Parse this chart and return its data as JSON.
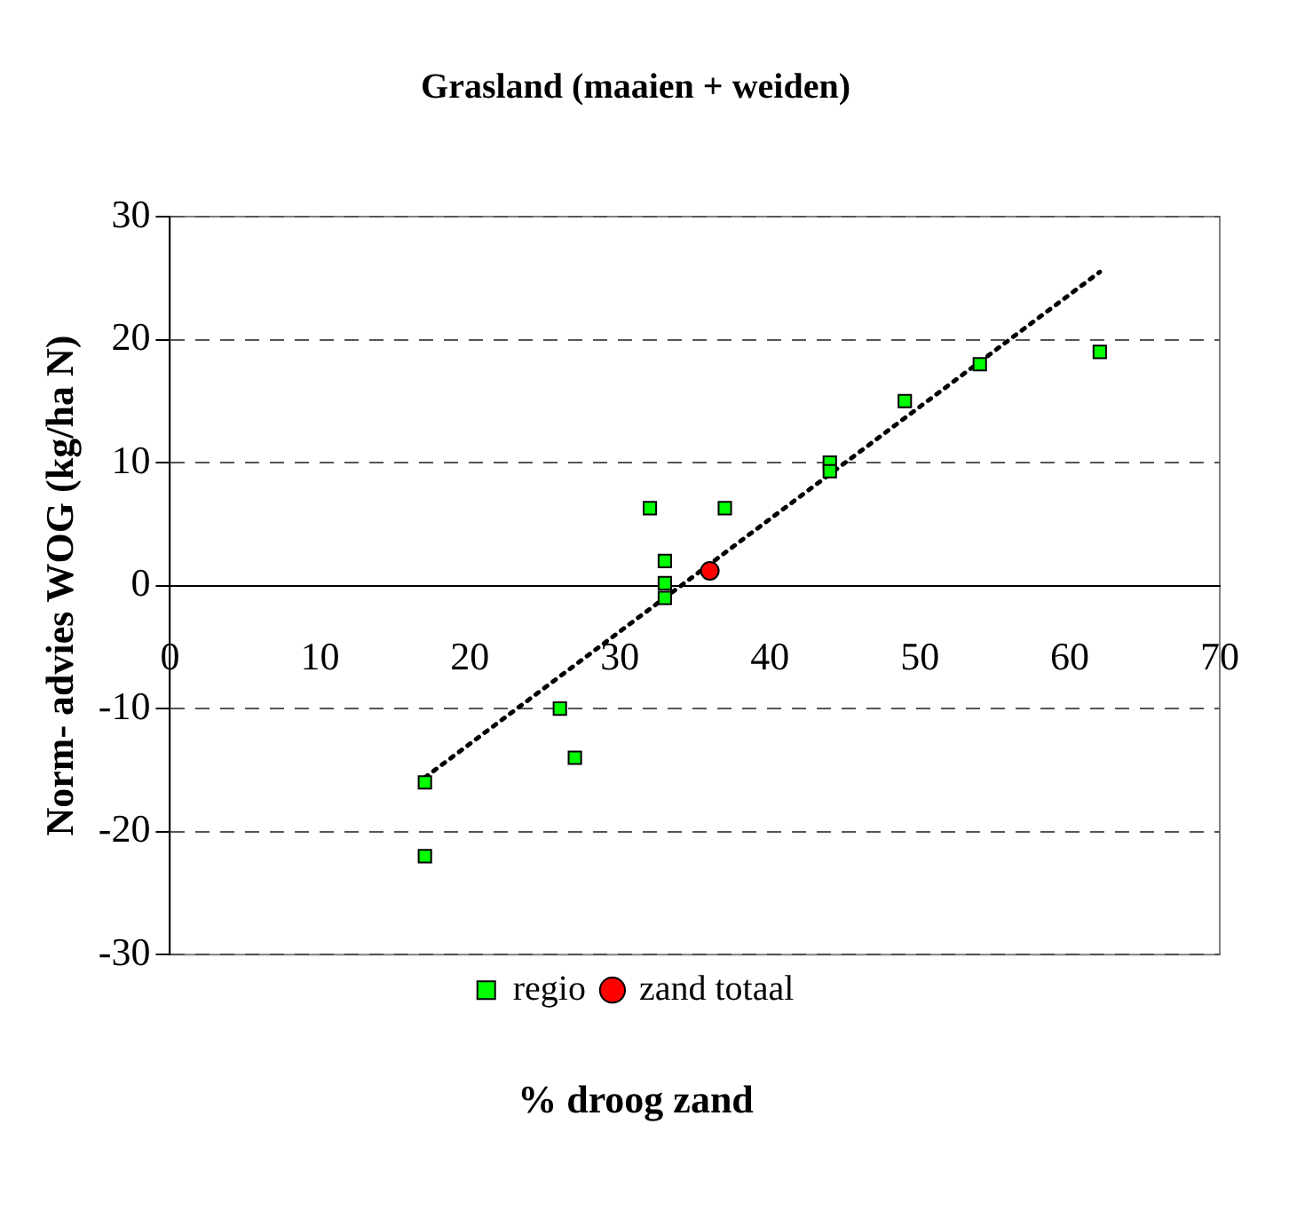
{
  "chart_data": {
    "type": "scatter",
    "title": "Grasland (maaien + weiden)",
    "xlabel": "% droog zand",
    "ylabel": "Norm- advies WOG (kg/ha N)",
    "xlim": [
      0,
      70
    ],
    "xticks": [
      0,
      10,
      20,
      30,
      40,
      50,
      60,
      70
    ],
    "ylim": [
      -30,
      30
    ],
    "yticks": [
      -30,
      -20,
      -10,
      0,
      10,
      20,
      30
    ],
    "grid": "y",
    "legend": "bottom",
    "series": [
      {
        "name": "regio",
        "color": "#00ff00",
        "marker": "square",
        "x": [
          17,
          17,
          26,
          27,
          32,
          33,
          33,
          33,
          37,
          44,
          44,
          49,
          54,
          62
        ],
        "values": [
          -16,
          -22,
          -10,
          -14,
          6.3,
          2,
          0.2,
          -1,
          6.3,
          10,
          9.3,
          15,
          18,
          19
        ]
      },
      {
        "name": "zand totaal",
        "color": "#ff0000",
        "marker": "circle",
        "x": [
          36
        ],
        "values": [
          1.2
        ]
      },
      {
        "type": "line",
        "color": "#000000",
        "marker": "none",
        "line_style": "dotted",
        "x": [
          17,
          62
        ],
        "values": [
          -15.6,
          25.5
        ]
      }
    ]
  }
}
